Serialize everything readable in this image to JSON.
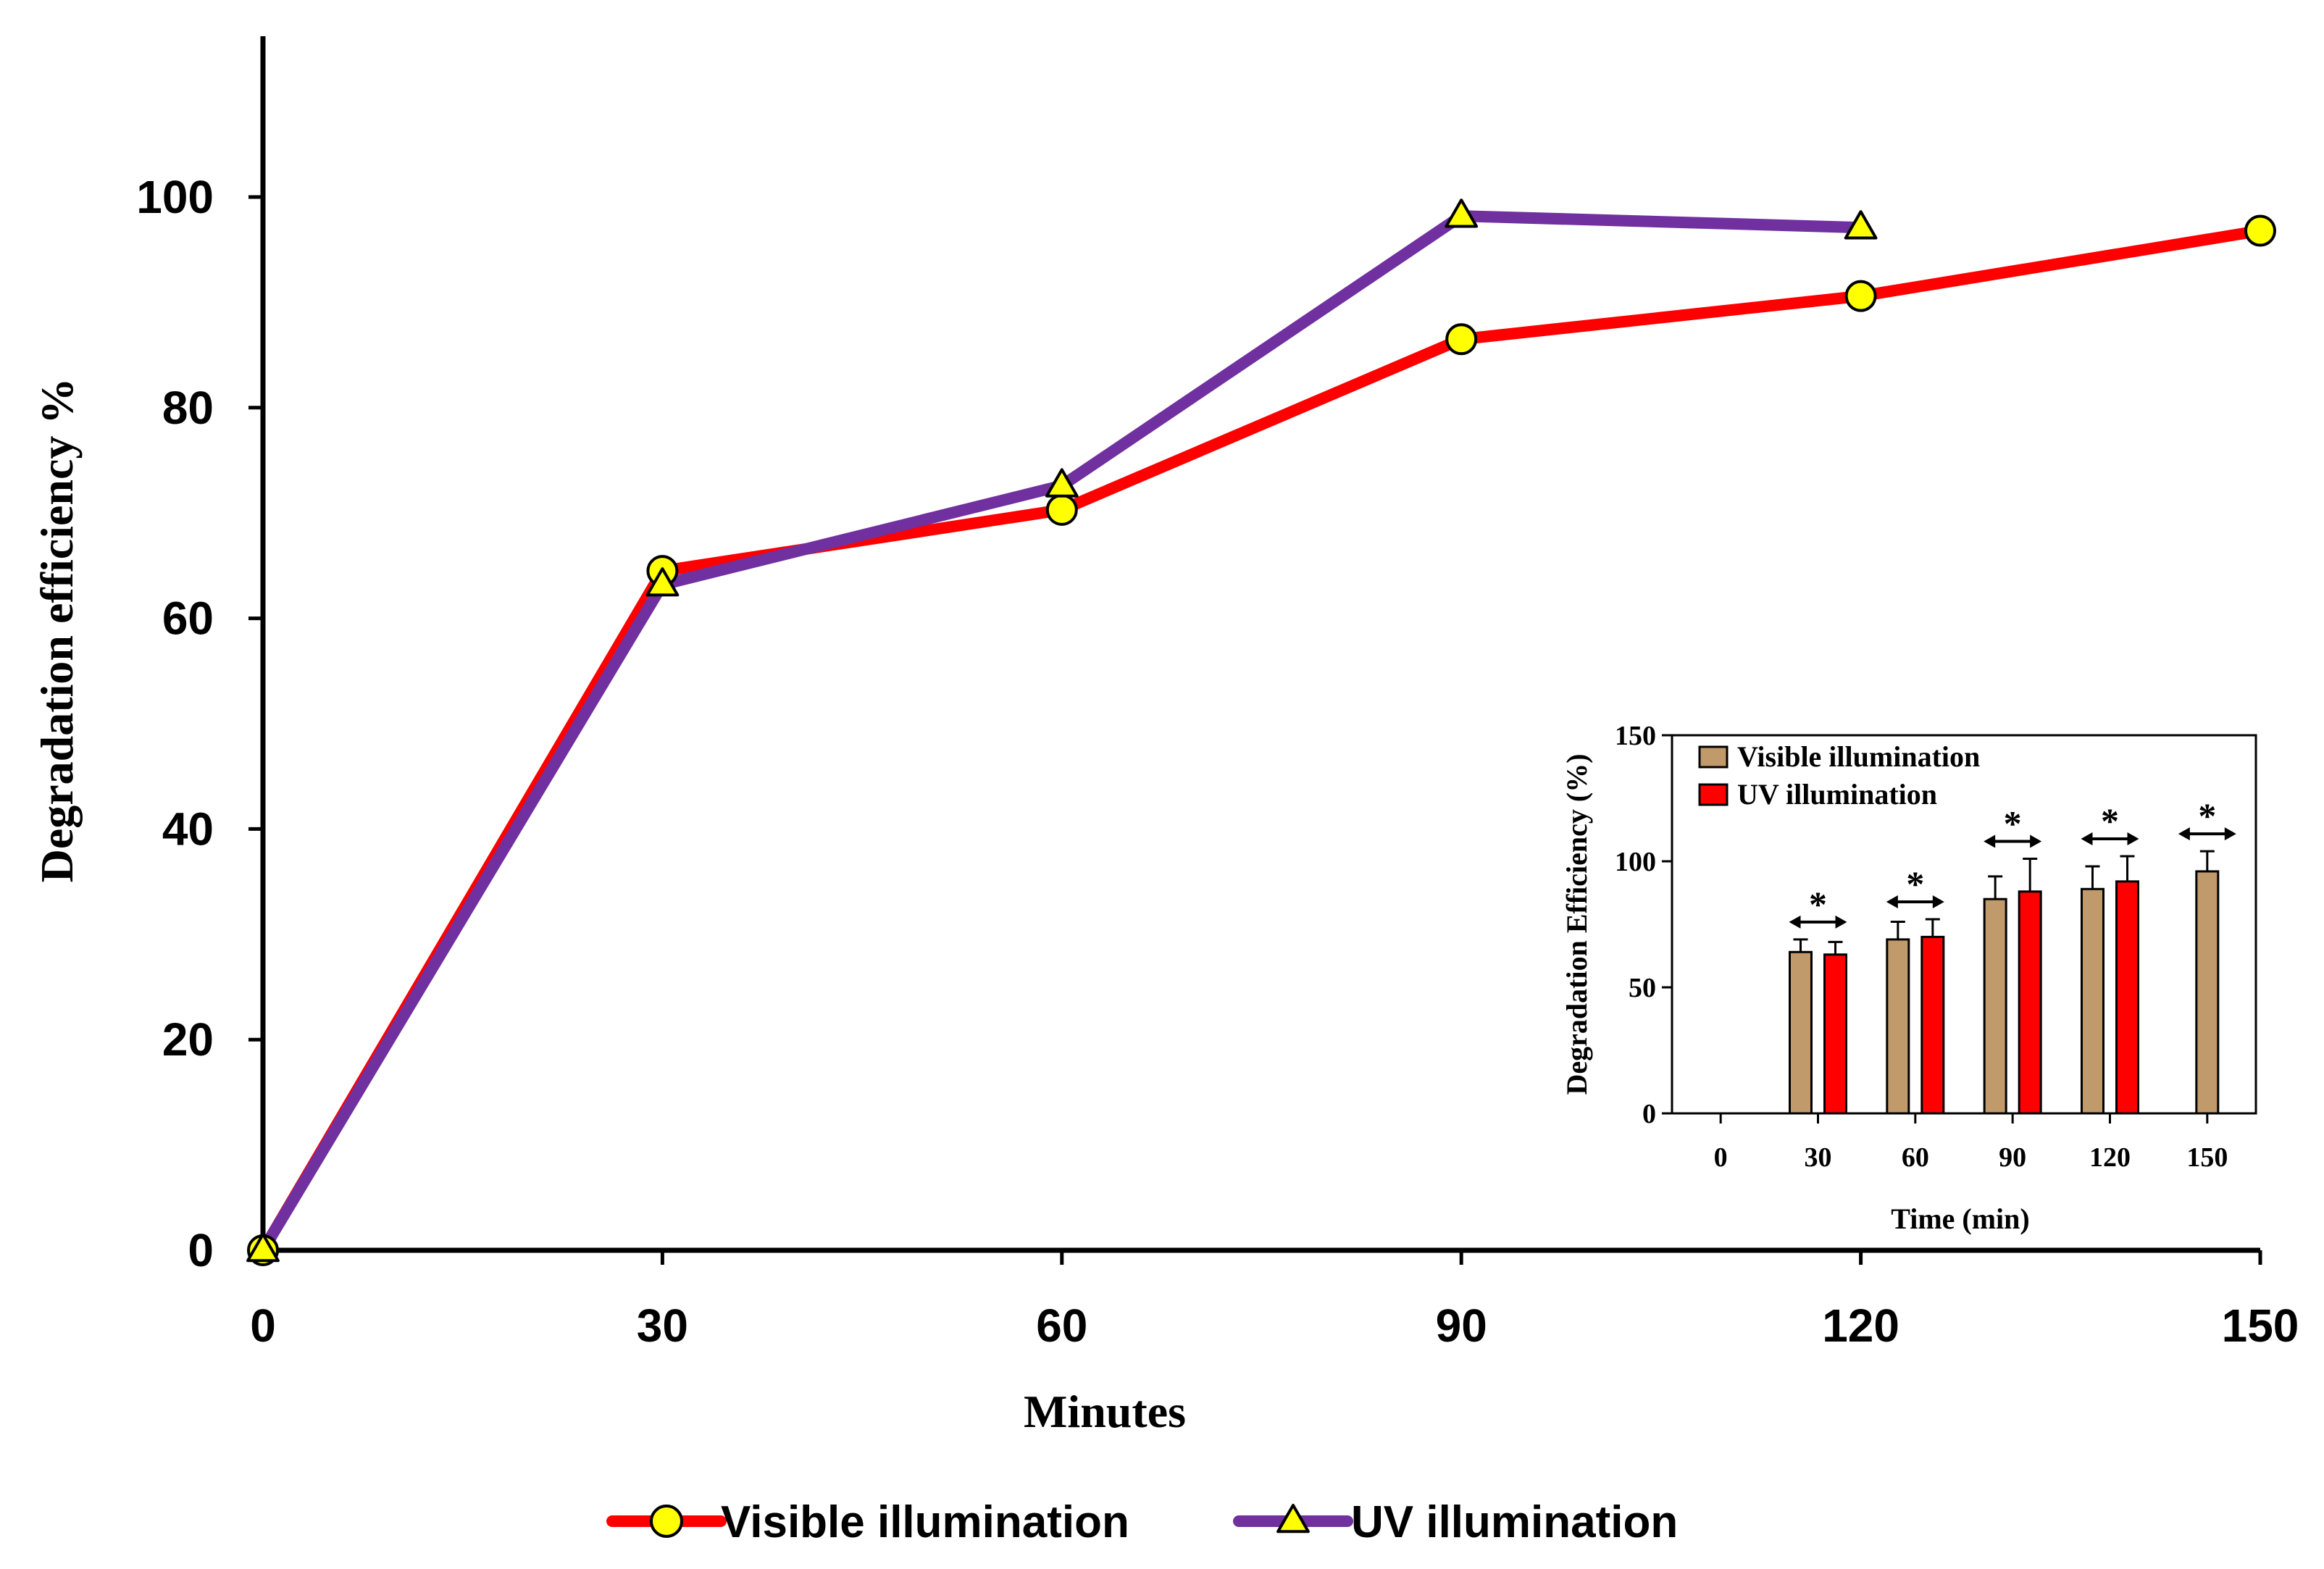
{
  "chart_data": [
    {
      "type": "line",
      "xlabel": "Minutes",
      "ylabel": "Degradation efficiency %",
      "xlim": [
        0,
        150
      ],
      "ylim": [
        0,
        115
      ],
      "x_ticks": [
        0,
        30,
        60,
        90,
        120,
        150
      ],
      "y_ticks": [
        0,
        20,
        40,
        60,
        80,
        100
      ],
      "legend_position": "bottom-center",
      "series": [
        {
          "name": "Visible illumination",
          "color": "#ff0000",
          "marker": "circle",
          "marker_color": "#ffff00",
          "x": [
            0,
            30,
            60,
            90,
            120,
            150
          ],
          "values": [
            0,
            64.5,
            70.3,
            86.5,
            90.6,
            96.8
          ]
        },
        {
          "name": "UV illumination",
          "color": "#7030a0",
          "marker": "triangle",
          "marker_color": "#ffff00",
          "x": [
            0,
            30,
            60,
            90,
            120
          ],
          "values": [
            0,
            63.2,
            72.6,
            98.2,
            97.1
          ]
        }
      ]
    },
    {
      "type": "bar",
      "title": "",
      "xlabel": "Time (min)",
      "ylabel": "Degradation Efficiency (%)",
      "ylim": [
        0,
        150
      ],
      "y_ticks": [
        0,
        50,
        100,
        150
      ],
      "categories": [
        "0",
        "30",
        "60",
        "90",
        "120",
        "150"
      ],
      "legend_position": "top-left",
      "significance_marker": "*",
      "series": [
        {
          "name": "Visible illumination",
          "color": "#c19a6b",
          "values": [
            null,
            64,
            69,
            85,
            89,
            96
          ],
          "errors": [
            null,
            5,
            7,
            9,
            9,
            8
          ]
        },
        {
          "name": "UV illumination",
          "color": "#ff0000",
          "values": [
            null,
            63,
            70,
            88,
            92,
            null
          ],
          "errors": [
            null,
            5,
            7,
            13,
            10,
            null
          ]
        }
      ]
    }
  ]
}
